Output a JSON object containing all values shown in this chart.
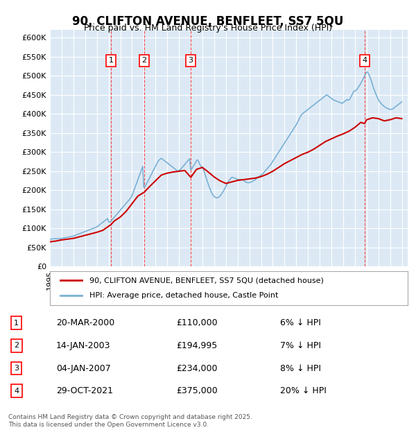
{
  "title": "90, CLIFTON AVENUE, BENFLEET, SS7 5QU",
  "subtitle": "Price paid vs. HM Land Registry's House Price Index (HPI)",
  "bg_color": "#dce9f5",
  "plot_bg_color": "#dce9f5",
  "hpi_color": "#7ab0d4",
  "price_color": "#cc0000",
  "ylim": [
    0,
    620000
  ],
  "yticks": [
    0,
    50000,
    100000,
    150000,
    200000,
    250000,
    300000,
    350000,
    400000,
    450000,
    500000,
    550000,
    600000
  ],
  "legend_label_red": "90, CLIFTON AVENUE, BENFLEET, SS7 5QU (detached house)",
  "legend_label_blue": "HPI: Average price, detached house, Castle Point",
  "transactions": [
    {
      "num": 1,
      "date": "20-MAR-2000",
      "price": 110000,
      "pct": "6%",
      "x": 2000.2
    },
    {
      "num": 2,
      "date": "14-JAN-2003",
      "price": 194995,
      "pct": "7%",
      "x": 2003.04
    },
    {
      "num": 3,
      "date": "04-JAN-2007",
      "price": 234000,
      "pct": "8%",
      "x": 2007.01
    },
    {
      "num": 4,
      "date": "29-OCT-2021",
      "price": 375000,
      "pct": "20%",
      "x": 2021.83
    }
  ],
  "footer": "Contains HM Land Registry data © Crown copyright and database right 2025.\nThis data is licensed under the Open Government Licence v3.0.",
  "hpi_data": {
    "x": [
      1995.0,
      1995.08,
      1995.17,
      1995.25,
      1995.33,
      1995.42,
      1995.5,
      1995.58,
      1995.67,
      1995.75,
      1995.83,
      1995.92,
      1996.0,
      1996.08,
      1996.17,
      1996.25,
      1996.33,
      1996.42,
      1996.5,
      1996.58,
      1996.67,
      1996.75,
      1996.83,
      1996.92,
      1997.0,
      1997.08,
      1997.17,
      1997.25,
      1997.33,
      1997.42,
      1997.5,
      1997.58,
      1997.67,
      1997.75,
      1997.83,
      1997.92,
      1998.0,
      1998.08,
      1998.17,
      1998.25,
      1998.33,
      1998.42,
      1998.5,
      1998.58,
      1998.67,
      1998.75,
      1998.83,
      1998.92,
      1999.0,
      1999.08,
      1999.17,
      1999.25,
      1999.33,
      1999.42,
      1999.5,
      1999.58,
      1999.67,
      1999.75,
      1999.83,
      1999.92,
      2000.0,
      2000.08,
      2000.17,
      2000.25,
      2000.33,
      2000.42,
      2000.5,
      2000.58,
      2000.67,
      2000.75,
      2000.83,
      2000.92,
      2001.0,
      2001.08,
      2001.17,
      2001.25,
      2001.33,
      2001.42,
      2001.5,
      2001.58,
      2001.67,
      2001.75,
      2001.83,
      2001.92,
      2002.0,
      2002.08,
      2002.17,
      2002.25,
      2002.33,
      2002.42,
      2002.5,
      2002.58,
      2002.67,
      2002.75,
      2002.83,
      2002.92,
      2003.0,
      2003.08,
      2003.17,
      2003.25,
      2003.33,
      2003.42,
      2003.5,
      2003.58,
      2003.67,
      2003.75,
      2003.83,
      2003.92,
      2004.0,
      2004.08,
      2004.17,
      2004.25,
      2004.33,
      2004.42,
      2004.5,
      2004.58,
      2004.67,
      2004.75,
      2004.83,
      2004.92,
      2005.0,
      2005.08,
      2005.17,
      2005.25,
      2005.33,
      2005.42,
      2005.5,
      2005.58,
      2005.67,
      2005.75,
      2005.83,
      2005.92,
      2006.0,
      2006.08,
      2006.17,
      2006.25,
      2006.33,
      2006.42,
      2006.5,
      2006.58,
      2006.67,
      2006.75,
      2006.83,
      2006.92,
      2007.0,
      2007.08,
      2007.17,
      2007.25,
      2007.33,
      2007.42,
      2007.5,
      2007.58,
      2007.67,
      2007.75,
      2007.83,
      2007.92,
      2008.0,
      2008.08,
      2008.17,
      2008.25,
      2008.33,
      2008.42,
      2008.5,
      2008.58,
      2008.67,
      2008.75,
      2008.83,
      2008.92,
      2009.0,
      2009.08,
      2009.17,
      2009.25,
      2009.33,
      2009.42,
      2009.5,
      2009.58,
      2009.67,
      2009.75,
      2009.83,
      2009.92,
      2010.0,
      2010.08,
      2010.17,
      2010.25,
      2010.33,
      2010.42,
      2010.5,
      2010.58,
      2010.67,
      2010.75,
      2010.83,
      2010.92,
      2011.0,
      2011.08,
      2011.17,
      2011.25,
      2011.33,
      2011.42,
      2011.5,
      2011.58,
      2011.67,
      2011.75,
      2011.83,
      2011.92,
      2012.0,
      2012.08,
      2012.17,
      2012.25,
      2012.33,
      2012.42,
      2012.5,
      2012.58,
      2012.67,
      2012.75,
      2012.83,
      2012.92,
      2013.0,
      2013.08,
      2013.17,
      2013.25,
      2013.33,
      2013.42,
      2013.5,
      2013.58,
      2013.67,
      2013.75,
      2013.83,
      2013.92,
      2014.0,
      2014.08,
      2014.17,
      2014.25,
      2014.33,
      2014.42,
      2014.5,
      2014.58,
      2014.67,
      2014.75,
      2014.83,
      2014.92,
      2015.0,
      2015.08,
      2015.17,
      2015.25,
      2015.33,
      2015.42,
      2015.5,
      2015.58,
      2015.67,
      2015.75,
      2015.83,
      2015.92,
      2016.0,
      2016.08,
      2016.17,
      2016.25,
      2016.33,
      2016.42,
      2016.5,
      2016.58,
      2016.67,
      2016.75,
      2016.83,
      2016.92,
      2017.0,
      2017.08,
      2017.17,
      2017.25,
      2017.33,
      2017.42,
      2017.5,
      2017.58,
      2017.67,
      2017.75,
      2017.83,
      2017.92,
      2018.0,
      2018.08,
      2018.17,
      2018.25,
      2018.33,
      2018.42,
      2018.5,
      2018.58,
      2018.67,
      2018.75,
      2018.83,
      2018.92,
      2019.0,
      2019.08,
      2019.17,
      2019.25,
      2019.33,
      2019.42,
      2019.5,
      2019.58,
      2019.67,
      2019.75,
      2019.83,
      2019.92,
      2020.0,
      2020.08,
      2020.17,
      2020.25,
      2020.33,
      2020.42,
      2020.5,
      2020.58,
      2020.67,
      2020.75,
      2020.83,
      2020.92,
      2021.0,
      2021.08,
      2021.17,
      2021.25,
      2021.33,
      2021.42,
      2021.5,
      2021.58,
      2021.67,
      2021.75,
      2021.83,
      2021.92,
      2022.0,
      2022.08,
      2022.17,
      2022.25,
      2022.33,
      2022.42,
      2022.5,
      2022.58,
      2022.67,
      2022.75,
      2022.83,
      2022.92,
      2023.0,
      2023.08,
      2023.17,
      2023.25,
      2023.33,
      2023.42,
      2023.5,
      2023.58,
      2023.67,
      2023.75,
      2023.83,
      2023.92,
      2024.0,
      2024.08,
      2024.17,
      2024.25,
      2024.33,
      2024.42,
      2024.5,
      2024.58,
      2024.67,
      2024.75,
      2024.83,
      2024.92,
      2025.0
    ],
    "y": [
      72000,
      72500,
      72000,
      72500,
      73000,
      73500,
      73000,
      73500,
      73000,
      73500,
      73000,
      73500,
      74000,
      74500,
      75000,
      75500,
      76000,
      76500,
      77000,
      77500,
      78000,
      78500,
      79000,
      79500,
      80000,
      81000,
      82000,
      83000,
      84000,
      85000,
      86000,
      87000,
      88000,
      89000,
      90000,
      91000,
      92000,
      93000,
      94000,
      95000,
      96000,
      97000,
      98000,
      99000,
      100000,
      101000,
      102000,
      103000,
      104000,
      106000,
      108000,
      110000,
      112000,
      114000,
      116000,
      118000,
      120000,
      122000,
      124000,
      126000,
      118000,
      116000,
      118000,
      121000,
      124000,
      127000,
      130000,
      133000,
      136000,
      139000,
      142000,
      145000,
      148000,
      151000,
      154000,
      157000,
      160000,
      163000,
      166000,
      169000,
      172000,
      175000,
      178000,
      182000,
      186000,
      193000,
      200000,
      207000,
      214000,
      221000,
      228000,
      235000,
      242000,
      249000,
      256000,
      263000,
      208000,
      209000,
      213000,
      218000,
      223000,
      228000,
      233000,
      238000,
      243000,
      248000,
      253000,
      258000,
      263000,
      268000,
      273000,
      278000,
      280000,
      282000,
      284000,
      282000,
      280000,
      278000,
      276000,
      274000,
      272000,
      270000,
      268000,
      266000,
      264000,
      262000,
      260000,
      258000,
      256000,
      254000,
      252000,
      250000,
      252000,
      254000,
      256000,
      259000,
      262000,
      265000,
      268000,
      271000,
      274000,
      277000,
      280000,
      283000,
      254000,
      256000,
      260000,
      265000,
      268000,
      273000,
      278000,
      280000,
      276000,
      270000,
      265000,
      262000,
      260000,
      255000,
      248000,
      240000,
      232000,
      224000,
      216000,
      209000,
      202000,
      196000,
      191000,
      187000,
      184000,
      182000,
      181000,
      180000,
      181000,
      183000,
      185000,
      188000,
      192000,
      196000,
      200000,
      205000,
      210000,
      215000,
      220000,
      225000,
      228000,
      231000,
      234000,
      234000,
      233000,
      232000,
      231000,
      230000,
      229000,
      228000,
      228000,
      228000,
      228000,
      228000,
      226000,
      224000,
      222000,
      221000,
      220000,
      220000,
      220000,
      221000,
      222000,
      223000,
      225000,
      226000,
      228000,
      230000,
      232000,
      234000,
      236000,
      238000,
      240000,
      242000,
      244000,
      247000,
      250000,
      253000,
      256000,
      259000,
      262000,
      265000,
      268000,
      272000,
      276000,
      280000,
      284000,
      288000,
      292000,
      296000,
      300000,
      304000,
      308000,
      312000,
      316000,
      320000,
      324000,
      328000,
      332000,
      336000,
      340000,
      344000,
      348000,
      352000,
      356000,
      360000,
      364000,
      368000,
      372000,
      377000,
      382000,
      387000,
      392000,
      397000,
      400000,
      402000,
      404000,
      406000,
      408000,
      410000,
      412000,
      414000,
      416000,
      418000,
      420000,
      422000,
      424000,
      426000,
      428000,
      430000,
      432000,
      434000,
      436000,
      438000,
      440000,
      442000,
      444000,
      446000,
      448000,
      450000,
      449000,
      447000,
      445000,
      443000,
      441000,
      439000,
      437000,
      436000,
      435000,
      434000,
      433000,
      432000,
      431000,
      430000,
      429000,
      428000,
      430000,
      432000,
      434000,
      436000,
      438000,
      436000,
      437000,
      440000,
      445000,
      450000,
      455000,
      460000,
      460000,
      462000,
      465000,
      468000,
      472000,
      476000,
      480000,
      485000,
      490000,
      495000,
      500000,
      505000,
      510000,
      510000,
      505000,
      500000,
      493000,
      485000,
      477000,
      469000,
      462000,
      455000,
      449000,
      443000,
      438000,
      434000,
      430000,
      427000,
      424000,
      422000,
      420000,
      418000,
      416000,
      415000,
      414000,
      413000,
      412000,
      412000,
      413000,
      414000,
      416000,
      418000,
      420000,
      422000,
      424000,
      426000,
      428000,
      430000,
      432000
    ]
  },
  "price_data": {
    "x": [
      1995.0,
      1995.5,
      1996.0,
      1996.5,
      1997.0,
      1997.5,
      1998.0,
      1998.5,
      1999.0,
      1999.5,
      2000.2,
      2000.5,
      2001.0,
      2001.5,
      2002.0,
      2002.5,
      2003.04,
      2003.5,
      2004.0,
      2004.5,
      2005.0,
      2005.5,
      2006.0,
      2006.5,
      2007.01,
      2007.5,
      2008.0,
      2008.5,
      2009.0,
      2009.5,
      2010.0,
      2010.5,
      2011.0,
      2011.5,
      2012.0,
      2012.5,
      2013.0,
      2013.5,
      2014.0,
      2014.5,
      2015.0,
      2015.5,
      2016.0,
      2016.5,
      2017.0,
      2017.5,
      2018.0,
      2018.5,
      2019.0,
      2019.5,
      2020.0,
      2020.5,
      2021.0,
      2021.5,
      2021.83,
      2022.0,
      2022.5,
      2023.0,
      2023.5,
      2024.0,
      2024.5,
      2025.0
    ],
    "y": [
      65000,
      67000,
      70000,
      72000,
      74000,
      78000,
      82000,
      86000,
      90000,
      95000,
      110000,
      120000,
      130000,
      145000,
      165000,
      185000,
      194995,
      210000,
      225000,
      240000,
      245000,
      248000,
      250000,
      252000,
      234000,
      255000,
      260000,
      248000,
      235000,
      225000,
      218000,
      222000,
      226000,
      228000,
      230000,
      232000,
      236000,
      242000,
      250000,
      260000,
      270000,
      278000,
      286000,
      294000,
      300000,
      308000,
      318000,
      328000,
      335000,
      342000,
      348000,
      355000,
      365000,
      378000,
      375000,
      385000,
      390000,
      388000,
      382000,
      385000,
      390000,
      388000
    ]
  }
}
